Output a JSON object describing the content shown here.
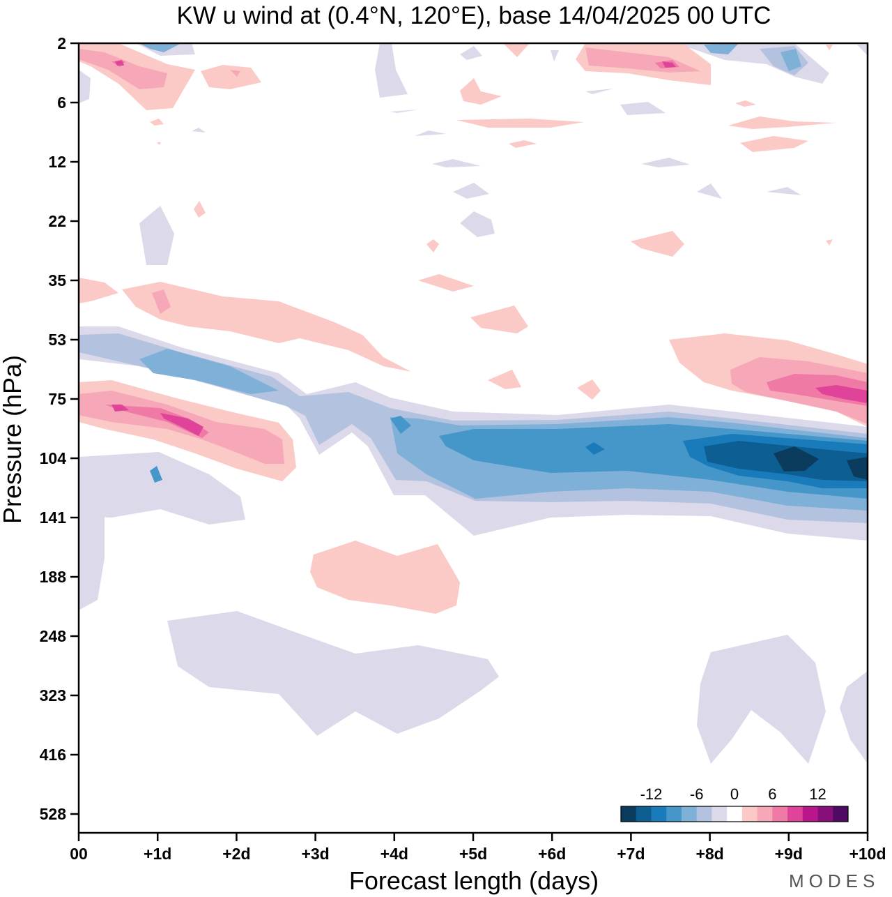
{
  "title": "KW u wind at (0.4°N, 120°E),  base 14/04/2025  00 UTC",
  "brand": "MODES",
  "chart_data": {
    "type": "heatmap",
    "title": "KW u wind at (0.4°N, 120°E),  base 14/04/2025  00 UTC",
    "xlabel": "Forecast length (days)",
    "ylabel": "Pressure (hPa)",
    "x_ticks": [
      "00",
      "+1d",
      "+2d",
      "+3d",
      "+4d",
      "+5d",
      "+6d",
      "+7d",
      "+8d",
      "+9d",
      "+10d"
    ],
    "xlim": [
      0,
      10
    ],
    "y_ticks": [
      2,
      6,
      12,
      22,
      35,
      53,
      75,
      104,
      141,
      188,
      248,
      323,
      416,
      528
    ],
    "y_scale": "log-like pressure, decreasing upward",
    "colorbar": {
      "tick_labels": [
        "-12",
        "-6",
        "0",
        "6",
        "12"
      ],
      "levels": [
        -14,
        -12,
        -10,
        -8,
        -6,
        -4,
        -2,
        2,
        4,
        6,
        8,
        10,
        12,
        14
      ],
      "colors": [
        "#0b3c5d",
        "#0d5e93",
        "#1a7bbb",
        "#4596c9",
        "#7fb0d8",
        "#b3c3df",
        "#dcdaea",
        "#ffffff",
        "#fbc9c6",
        "#f7a8b8",
        "#f07aa6",
        "#e0439a",
        "#b8168a",
        "#870f79",
        "#4f0b63"
      ]
    },
    "regions": [
      {
        "level": 2,
        "sign": "positive",
        "description": "stratospheric shear layer 35-53 hPa, day 0-4",
        "days": [
          0,
          4
        ],
        "pressure": [
          35,
          60
        ]
      },
      {
        "level": 6,
        "sign": "positive",
        "description": "westerly band 70-110 hPa",
        "days": [
          0,
          2.7
        ],
        "pressure": [
          68,
          112
        ]
      },
      {
        "level": -6,
        "sign": "negative",
        "description": "easterly band descending 53-110 hPa",
        "days": [
          0,
          10
        ],
        "pressure": [
          53,
          165
        ]
      },
      {
        "level": -12,
        "sign": "negative",
        "description": "strong easterly core near 104 hPa",
        "days": [
          8,
          10
        ],
        "pressure": [
          92,
          125
        ]
      },
      {
        "level": 10,
        "sign": "positive",
        "description": "westerly core near 75 hPa",
        "days": [
          8.2,
          10
        ],
        "pressure": [
          55,
          90
        ]
      },
      {
        "level": 2,
        "sign": "positive",
        "description": "upper troposphere westerly patch near 188 hPa",
        "days": [
          2.9,
          4.8
        ],
        "pressure": [
          150,
          220
        ]
      },
      {
        "level": -2,
        "sign": "negative",
        "description": "broad weak easterlies 248-416 hPa",
        "days": [
          1,
          10
        ],
        "pressure": [
          240,
          460
        ]
      }
    ]
  }
}
